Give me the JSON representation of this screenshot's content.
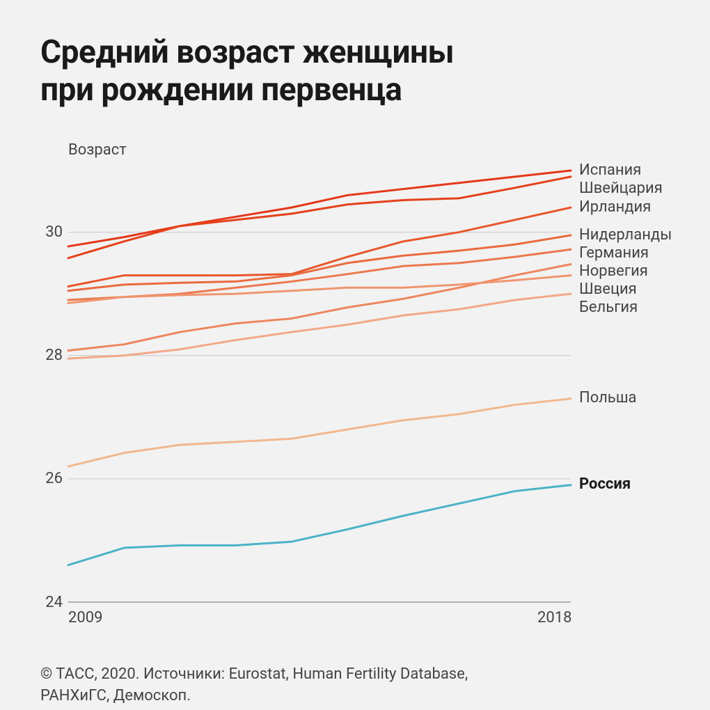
{
  "title_line1": "Средний возраст женщины",
  "title_line2": "при рождении первенца",
  "chart": {
    "type": "line",
    "background_color": "#f2f2f2",
    "grid_color": "#c8c8c8",
    "axis_color": "#9a9a9a",
    "x_start": 2009,
    "x_end": 2018,
    "x_ticks": [
      2009,
      2018
    ],
    "y_axis_title": "Возраст",
    "y_min": 24,
    "y_max": 31,
    "y_ticks": [
      24,
      26,
      28,
      30
    ],
    "line_width": 3,
    "tick_font_size": 22,
    "label_font_size": 22,
    "series": [
      {
        "name": "Испания",
        "label": "Испания",
        "color": "#e53719",
        "bold": false,
        "values": [
          29.77,
          29.92,
          30.1,
          30.25,
          30.4,
          30.6,
          30.7,
          30.8,
          30.9,
          31.0
        ]
      },
      {
        "name": "Швейцария",
        "label": "Швейцария",
        "color": "#e5411a",
        "bold": false,
        "values": [
          29.58,
          29.85,
          30.1,
          30.2,
          30.3,
          30.45,
          30.52,
          30.55,
          30.72,
          30.9
        ]
      },
      {
        "name": "Ирландия",
        "label": "Ирландия",
        "color": "#e8572b",
        "bold": false,
        "values": [
          29.12,
          29.3,
          29.3,
          29.3,
          29.32,
          29.6,
          29.85,
          30.0,
          30.2,
          30.4
        ]
      },
      {
        "name": "Нидерланды",
        "label": "Нидерланды",
        "color": "#ea6a3f",
        "bold": false,
        "values": [
          29.05,
          29.15,
          29.18,
          29.2,
          29.3,
          29.5,
          29.62,
          29.7,
          29.8,
          29.95
        ]
      },
      {
        "name": "Германия",
        "label": "Германия",
        "color": "#ec784e",
        "bold": false,
        "values": [
          28.9,
          28.95,
          29.0,
          29.1,
          29.2,
          29.32,
          29.45,
          29.5,
          29.6,
          29.72
        ]
      },
      {
        "name": "Норвегия",
        "label": "Норвегия",
        "color": "#ee865e",
        "bold": false,
        "values": [
          28.08,
          28.18,
          28.38,
          28.52,
          28.6,
          28.78,
          28.92,
          29.1,
          29.3,
          29.48
        ]
      },
      {
        "name": "Швеция",
        "label": "Швеция",
        "color": "#f0956f",
        "bold": false,
        "values": [
          28.85,
          28.95,
          28.98,
          29.0,
          29.05,
          29.1,
          29.1,
          29.15,
          29.22,
          29.3
        ]
      },
      {
        "name": "Бельгия",
        "label": "Бельгия",
        "color": "#f2a888",
        "bold": false,
        "values": [
          27.95,
          28.0,
          28.1,
          28.25,
          28.38,
          28.5,
          28.65,
          28.75,
          28.9,
          29.0
        ]
      },
      {
        "name": "Польша",
        "label": "Польша",
        "color": "#f2b88e",
        "bold": false,
        "values": [
          26.2,
          26.42,
          26.55,
          26.6,
          26.65,
          26.8,
          26.95,
          27.05,
          27.2,
          27.3
        ]
      },
      {
        "name": "Россия",
        "label": "Россия",
        "color": "#4ab3c6",
        "bold": true,
        "values": [
          24.6,
          24.88,
          24.92,
          24.92,
          24.98,
          25.18,
          25.4,
          25.6,
          25.8,
          25.9
        ]
      }
    ]
  },
  "source_line1": "© ТАСС, 2020. Источники: Eurostat, Human Fertility Database,",
  "source_line2": "РАНХиГС, Демоскоп."
}
